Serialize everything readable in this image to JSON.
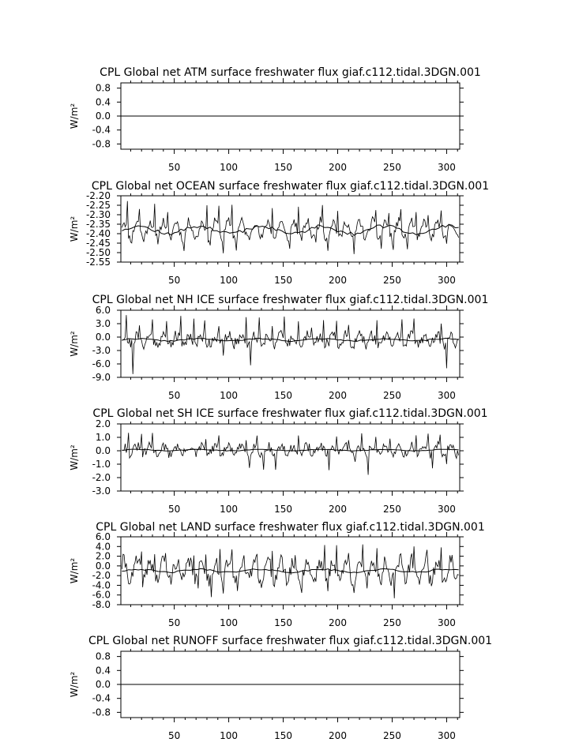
{
  "x_ticks": [
    "50",
    "100",
    "150",
    "200",
    "250",
    "300"
  ],
  "ylabel": "W/m²",
  "chart_data": [
    {
      "type": "line",
      "title": "CPL Global net ATM surface freshwater flux giaf.c112.tidal.3DGN.001",
      "ylabel": "W/m²",
      "xlim": [
        1,
        312
      ],
      "ylim": [
        -0.95,
        0.95
      ],
      "y_ticks": [
        "0.8",
        "0.4",
        "0.0",
        "-0.4",
        "-0.8"
      ],
      "y_tick_values": [
        0.8,
        0.4,
        0.0,
        -0.4,
        -0.8
      ],
      "series": [
        {
          "kind": "flat",
          "value": 0.0
        }
      ]
    },
    {
      "type": "line",
      "title": "CPL Global net OCEAN surface freshwater flux giaf.c112.tidal.3DGN.001",
      "ylabel": "W/m²",
      "xlim": [
        1,
        312
      ],
      "ylim": [
        -2.55,
        -2.2
      ],
      "y_ticks": [
        "-2.20",
        "-2.25",
        "-2.30",
        "-2.35",
        "-2.40",
        "-2.45",
        "-2.50",
        "-2.55"
      ],
      "y_tick_values": [
        -2.2,
        -2.25,
        -2.3,
        -2.35,
        -2.4,
        -2.45,
        -2.5,
        -2.55
      ],
      "series": [
        {
          "kind": "monthly",
          "mean": -2.38,
          "amp": 0.045,
          "noise": 0.025,
          "spike_hi": [
            -2.21,
            -2.23,
            -2.24
          ],
          "spike_lo": [
            -2.5,
            -2.52
          ],
          "seed": 11
        },
        {
          "kind": "smooth",
          "mean": -2.38,
          "amp": 0.02,
          "seed": 12
        }
      ]
    },
    {
      "type": "line",
      "title": "CPL Global net NH ICE surface freshwater flux giaf.c112.tidal.3DGN.001",
      "ylabel": "W/m²",
      "xlim": [
        1,
        312
      ],
      "ylim": [
        -9,
        6
      ],
      "y_ticks": [
        "6.0",
        "3.0",
        "0.0",
        "-3.0",
        "-6.0",
        "-9.0"
      ],
      "y_tick_values": [
        6,
        3,
        0,
        -3,
        -6,
        -9
      ],
      "series": [
        {
          "kind": "monthly",
          "mean": -0.6,
          "amp": 0.9,
          "noise": 1.3,
          "spike_hi": [
            5.6,
            4.8,
            4.2
          ],
          "spike_lo": [
            -8.6,
            -6.5
          ],
          "seed": 21
        },
        {
          "kind": "smooth",
          "mean": -0.6,
          "amp": 0.25,
          "seed": 22
        }
      ]
    },
    {
      "type": "line",
      "title": "CPL Global net SH ICE surface freshwater flux giaf.c112.tidal.3DGN.001",
      "ylabel": "W/m²",
      "xlim": [
        1,
        312
      ],
      "ylim": [
        -3,
        2
      ],
      "y_ticks": [
        "2.0",
        "1.0",
        "0.0",
        "-1.0",
        "-2.0",
        "-3.0"
      ],
      "y_tick_values": [
        2,
        1,
        0,
        -1,
        -2,
        -3
      ],
      "series": [
        {
          "kind": "monthly",
          "mean": 0.05,
          "amp": 0.3,
          "noise": 0.35,
          "spike_hi": [
            1.5,
            1.3
          ],
          "spike_lo": [
            -1.8,
            -1.5
          ],
          "seed": 31
        },
        {
          "kind": "smooth",
          "mean": 0.05,
          "amp": 0.05,
          "seed": 32
        }
      ]
    },
    {
      "type": "line",
      "title": "CPL Global net LAND surface freshwater flux giaf.c112.tidal.3DGN.001",
      "ylabel": "W/m²",
      "xlim": [
        1,
        312
      ],
      "ylim": [
        -8,
        6
      ],
      "y_ticks": [
        "6.0",
        "4.0",
        "2.0",
        "0.0",
        "-2.0",
        "-4.0",
        "-6.0",
        "-8.0"
      ],
      "y_tick_values": [
        6,
        4,
        2,
        0,
        -2,
        -4,
        -6,
        -8
      ],
      "series": [
        {
          "kind": "monthly",
          "mean": -1.0,
          "amp": 2.0,
          "noise": 1.6,
          "spike_hi": [
            5.0,
            4.6
          ],
          "spike_lo": [
            -6.8,
            -6.2
          ],
          "seed": 41
        },
        {
          "kind": "smooth",
          "mean": -1.0,
          "amp": 0.3,
          "seed": 42
        }
      ]
    },
    {
      "type": "line",
      "title": "CPL Global net RUNOFF surface freshwater flux giaf.c112.tidal.3DGN.001",
      "ylabel": "W/m²",
      "xlim": [
        1,
        312
      ],
      "ylim": [
        -0.95,
        0.95
      ],
      "y_ticks": [
        "0.8",
        "0.4",
        "0.0",
        "-0.4",
        "-0.8"
      ],
      "y_tick_values": [
        0.8,
        0.4,
        0.0,
        -0.4,
        -0.8
      ],
      "series": [
        {
          "kind": "flat",
          "value": 0.0
        }
      ]
    }
  ]
}
